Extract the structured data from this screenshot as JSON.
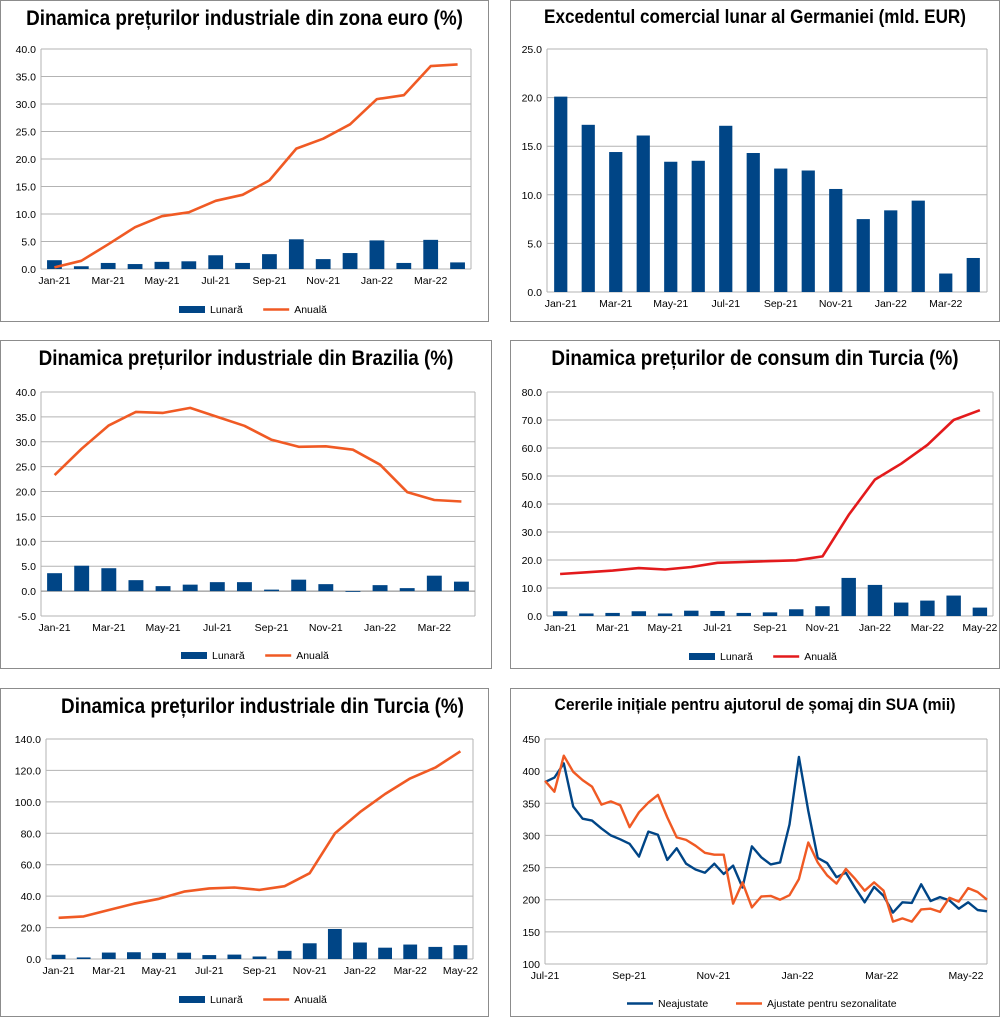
{
  "chart_data": [
    {
      "id": "ez-ppi",
      "type": "bar+line",
      "title": "Dinamica prețurilor industriale din zona euro (%)",
      "categories": [
        "Jan-21",
        "Feb-21",
        "Mar-21",
        "Apr-21",
        "May-21",
        "Jun-21",
        "Jul-21",
        "Aug-21",
        "Sep-21",
        "Oct-21",
        "Nov-21",
        "Dec-21",
        "Jan-22",
        "Feb-22",
        "Mar-22",
        "Apr-22"
      ],
      "x_tick_labels": [
        "Jan-21",
        "Mar-21",
        "May-21",
        "Jul-21",
        "Sep-21",
        "Nov-21",
        "Jan-22",
        "Mar-22"
      ],
      "series": [
        {
          "name": "Lunară",
          "kind": "bar",
          "color": "#004586",
          "values": [
            1.6,
            0.5,
            1.1,
            0.9,
            1.3,
            1.4,
            2.5,
            1.1,
            2.7,
            5.4,
            1.8,
            2.9,
            5.2,
            1.1,
            5.3,
            1.2
          ]
        },
        {
          "name": "Anuală",
          "kind": "line",
          "color": "#f05a24",
          "values": [
            0.3,
            1.5,
            4.5,
            7.6,
            9.6,
            10.3,
            12.4,
            13.5,
            16.1,
            21.9,
            23.7,
            26.3,
            30.9,
            31.6,
            36.9,
            37.2
          ]
        }
      ],
      "y_ticks": [
        "40.0",
        "35.0",
        "30.0",
        "25.0",
        "20.0",
        "15.0",
        "10.0",
        "5.0",
        "0.0"
      ],
      "ylim": [
        0,
        40
      ],
      "legend": [
        "Lunară",
        "Anuală"
      ]
    },
    {
      "id": "de-trade",
      "type": "bar",
      "title": "Excedentul comercial lunar al Germaniei (mld. EUR)",
      "categories": [
        "Jan-21",
        "Feb-21",
        "Mar-21",
        "Apr-21",
        "May-21",
        "Jun-21",
        "Jul-21",
        "Aug-21",
        "Sep-21",
        "Oct-21",
        "Nov-21",
        "Dec-21",
        "Jan-22",
        "Feb-22",
        "Mar-22",
        "Apr-22"
      ],
      "x_tick_labels": [
        "Jan-21",
        "Mar-21",
        "May-21",
        "Jul-21",
        "Sep-21",
        "Nov-21",
        "Jan-22",
        "Mar-22"
      ],
      "series": [
        {
          "name": "Excedent",
          "kind": "bar",
          "color": "#004586",
          "values": [
            20.1,
            17.2,
            14.4,
            16.1,
            13.4,
            13.5,
            17.1,
            14.3,
            12.7,
            12.5,
            10.6,
            7.5,
            8.4,
            9.4,
            1.9,
            3.5
          ]
        }
      ],
      "y_ticks": [
        "25.0",
        "20.0",
        "15.0",
        "10.0",
        "5.0",
        "0.0"
      ],
      "ylim": [
        0,
        25
      ]
    },
    {
      "id": "br-ppi",
      "type": "bar+line",
      "title": "Dinamica prețurilor industriale din Brazilia (%)",
      "categories": [
        "Jan-21",
        "Feb-21",
        "Mar-21",
        "Apr-21",
        "May-21",
        "Jun-21",
        "Jul-21",
        "Aug-21",
        "Sep-21",
        "Oct-21",
        "Nov-21",
        "Dec-21",
        "Jan-22",
        "Feb-22",
        "Mar-22",
        "Apr-22"
      ],
      "x_tick_labels": [
        "Jan-21",
        "Mar-21",
        "May-21",
        "Jul-21",
        "Sep-21",
        "Nov-21",
        "Jan-22",
        "Mar-22"
      ],
      "series": [
        {
          "name": "Lunară",
          "kind": "bar",
          "color": "#004586",
          "values": [
            3.6,
            5.1,
            4.6,
            2.2,
            1.0,
            1.3,
            1.8,
            1.8,
            0.3,
            2.3,
            1.4,
            -0.1,
            1.2,
            0.6,
            3.1,
            1.9
          ]
        },
        {
          "name": "Anuală",
          "kind": "line",
          "color": "#f05a24",
          "values": [
            23.3,
            28.6,
            33.3,
            36.0,
            35.8,
            36.8,
            35.0,
            33.2,
            30.4,
            29.0,
            29.1,
            28.4,
            25.4,
            19.9,
            18.3,
            18.0
          ]
        }
      ],
      "y_ticks": [
        "40.0",
        "35.0",
        "30.0",
        "25.0",
        "20.0",
        "15.0",
        "10.0",
        "5.0",
        "0.0",
        "-5.0"
      ],
      "ylim": [
        -5,
        40
      ],
      "legend": [
        "Lunară",
        "Anuală"
      ]
    },
    {
      "id": "tr-cpi",
      "type": "bar+line",
      "title": "Dinamica prețurilor de consum din Turcia (%)",
      "categories": [
        "Jan-21",
        "Feb-21",
        "Mar-21",
        "Apr-21",
        "May-21",
        "Jun-21",
        "Jul-21",
        "Aug-21",
        "Sep-21",
        "Oct-21",
        "Nov-21",
        "Dec-21",
        "Jan-22",
        "Feb-22",
        "Mar-22",
        "Apr-22",
        "May-22"
      ],
      "x_tick_labels": [
        "Jan-21",
        "Mar-21",
        "May-21",
        "Jul-21",
        "Sep-21",
        "Nov-21",
        "Jan-22",
        "Mar-22",
        "May-22"
      ],
      "series": [
        {
          "name": "Lunară",
          "kind": "bar",
          "color": "#004586",
          "values": [
            1.7,
            0.9,
            1.1,
            1.7,
            0.9,
            1.9,
            1.8,
            1.1,
            1.3,
            2.4,
            3.5,
            13.6,
            11.1,
            4.8,
            5.5,
            7.3,
            3.0
          ]
        },
        {
          "name": "Anuală",
          "kind": "line",
          "color": "#e31a1c",
          "values": [
            15.0,
            15.6,
            16.2,
            17.1,
            16.6,
            17.5,
            19.0,
            19.3,
            19.6,
            19.9,
            21.3,
            36.1,
            48.7,
            54.4,
            61.1,
            70.0,
            73.5
          ]
        }
      ],
      "y_ticks": [
        "80.0",
        "70.0",
        "60.0",
        "50.0",
        "40.0",
        "30.0",
        "20.0",
        "10.0",
        "0.0"
      ],
      "ylim": [
        0,
        80
      ],
      "legend": [
        "Lunară",
        "Anuală"
      ]
    },
    {
      "id": "tr-ppi",
      "type": "bar+line",
      "title": "Dinamica prețurilor industriale din Turcia (%)",
      "categories": [
        "Jan-21",
        "Feb-21",
        "Mar-21",
        "Apr-21",
        "May-21",
        "Jun-21",
        "Jul-21",
        "Aug-21",
        "Sep-21",
        "Oct-21",
        "Nov-21",
        "Dec-21",
        "Jan-22",
        "Feb-22",
        "Mar-22",
        "Apr-22",
        "May-22"
      ],
      "x_tick_labels": [
        "Jan-21",
        "Mar-21",
        "May-21",
        "Jul-21",
        "Sep-21",
        "Nov-21",
        "Jan-22",
        "Mar-22",
        "May-22"
      ],
      "series": [
        {
          "name": "Lunară",
          "kind": "bar",
          "color": "#004586",
          "values": [
            2.7,
            1.0,
            4.1,
            4.3,
            3.9,
            4.0,
            2.5,
            2.8,
            1.6,
            5.2,
            10.0,
            19.1,
            10.5,
            7.2,
            9.2,
            7.7,
            8.8
          ]
        },
        {
          "name": "Anuală",
          "kind": "line",
          "color": "#f05a24",
          "values": [
            26.2,
            27.1,
            31.2,
            35.2,
            38.3,
            42.9,
            44.9,
            45.5,
            44.0,
            46.3,
            54.6,
            79.9,
            93.5,
            105.0,
            114.9,
            121.8,
            132.2
          ]
        }
      ],
      "y_ticks": [
        "140.0",
        "120.0",
        "100.0",
        "80.0",
        "60.0",
        "40.0",
        "20.0",
        "0.0"
      ],
      "ylim": [
        0,
        140
      ],
      "legend": [
        "Lunară",
        "Anuală"
      ]
    },
    {
      "id": "us-claims",
      "type": "line",
      "title": "Cererile inițiale pentru ajutorul de șomaj din SUA (mii)",
      "x_tick_labels": [
        "Jul-21",
        "Sep-21",
        "Nov-21",
        "Jan-22",
        "Mar-22",
        "May-22"
      ],
      "series": [
        {
          "name": "Neajustate",
          "kind": "line",
          "color": "#004586",
          "values": [
            383,
            390,
            412,
            345,
            326,
            323,
            311,
            300,
            294,
            287,
            267,
            306,
            301,
            262,
            280,
            256,
            247,
            242,
            256,
            240,
            253,
            219,
            283,
            266,
            255,
            258,
            317,
            422,
            338,
            265,
            257,
            235,
            242,
            218,
            196,
            220,
            206,
            180,
            196,
            195,
            224,
            198,
            204,
            199,
            186,
            196,
            184,
            182
          ]
        },
        {
          "name": "Ajustate pentru sezonalitate",
          "kind": "line",
          "color": "#f05a24",
          "values": [
            385,
            368,
            424,
            399,
            386,
            376,
            348,
            353,
            347,
            313,
            336,
            351,
            363,
            328,
            297,
            293,
            284,
            273,
            270,
            270,
            194,
            227,
            188,
            205,
            206,
            200,
            207,
            232,
            289,
            258,
            238,
            225,
            248,
            232,
            214,
            227,
            214,
            166,
            171,
            166,
            185,
            186,
            181,
            203,
            197,
            218,
            212,
            200
          ]
        }
      ],
      "y_ticks": [
        "450",
        "400",
        "350",
        "300",
        "250",
        "200",
        "150",
        "100"
      ],
      "ylim": [
        100,
        450
      ],
      "legend": [
        "Neajustate",
        "Ajustate pentru sezonalitate"
      ]
    }
  ]
}
